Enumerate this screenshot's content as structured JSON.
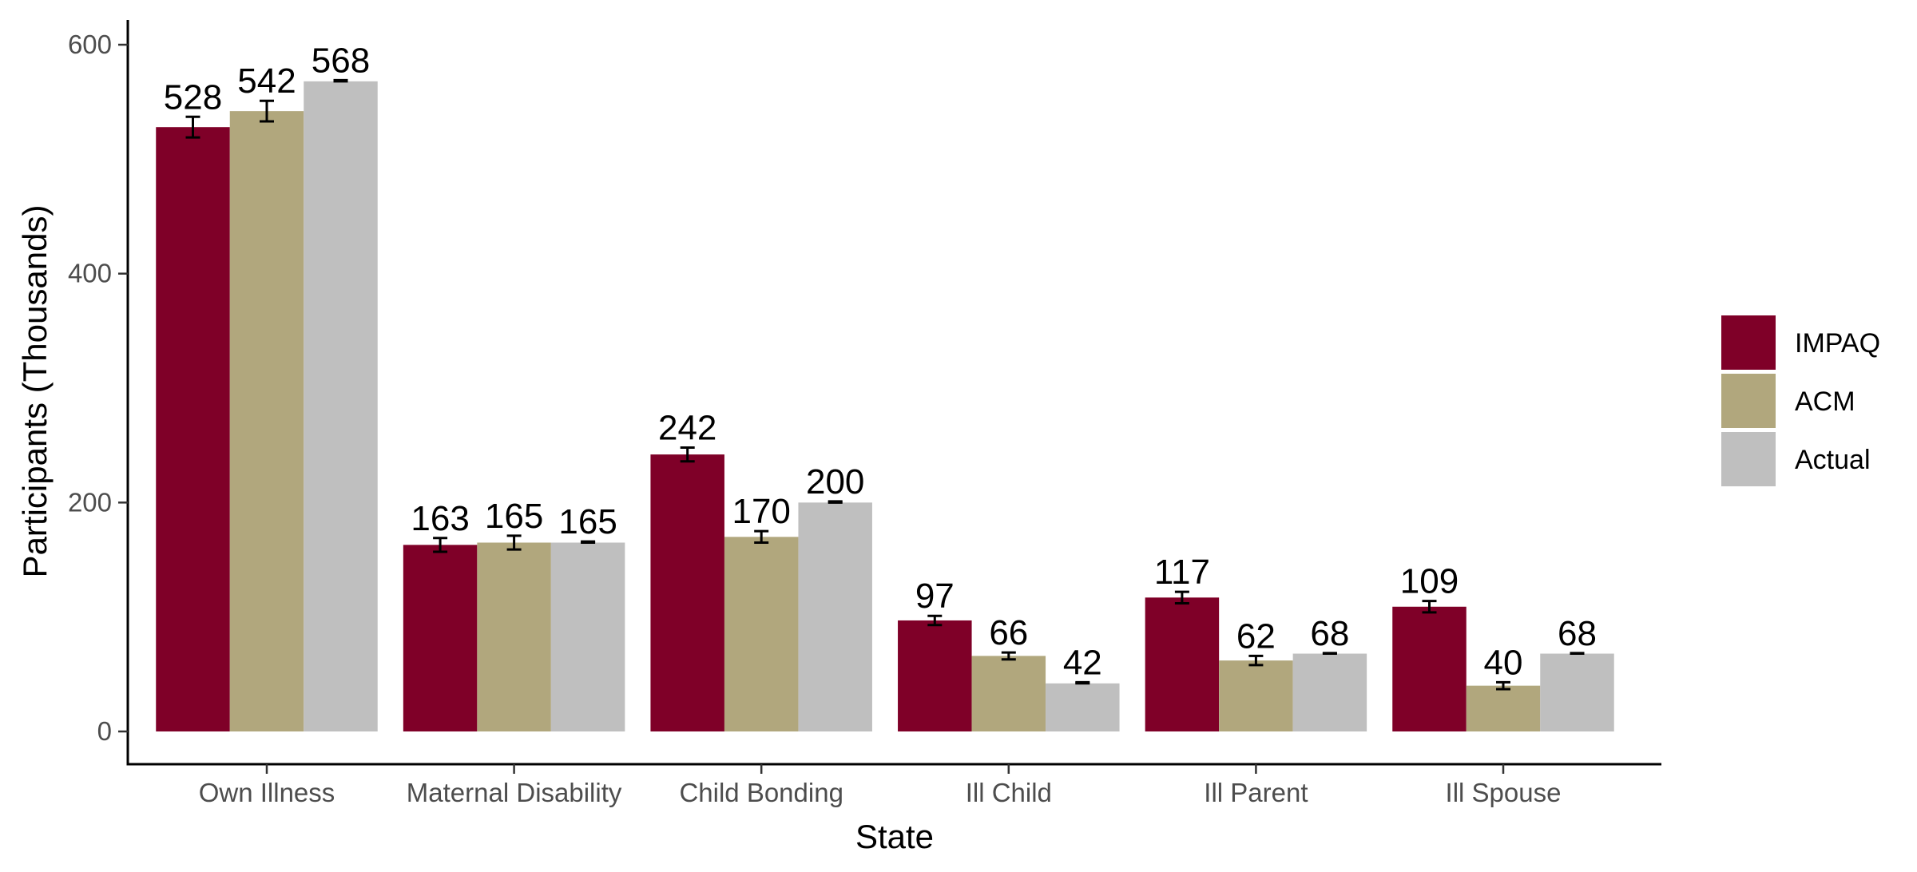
{
  "chart_data": {
    "type": "bar",
    "xlabel": "State",
    "ylabel": "Participants (Thousands)",
    "ylim": [
      0,
      620
    ],
    "y_ticks": [
      0,
      200,
      400,
      600
    ],
    "categories": [
      "Own Illness",
      "Maternal Disability",
      "Child Bonding",
      "Ill Child",
      "Ill Parent",
      "Ill Spouse"
    ],
    "series": [
      {
        "name": "IMPAQ",
        "color": "#7f0028",
        "values": [
          528,
          163,
          242,
          97,
          117,
          109
        ],
        "labels": [
          "528",
          "163",
          "242",
          "97",
          "117",
          "109"
        ],
        "error_low": [
          519,
          157,
          236,
          93,
          112,
          104
        ],
        "error_high": [
          537,
          169,
          248,
          101,
          122,
          114
        ]
      },
      {
        "name": "ACM",
        "color": "#b1a77d",
        "values": [
          542,
          165,
          170,
          66,
          62,
          40
        ],
        "labels": [
          "542",
          "165",
          "170",
          "66",
          "62",
          "40"
        ],
        "error_low": [
          533,
          159,
          165,
          63,
          58,
          37
        ],
        "error_high": [
          551,
          171,
          175,
          69,
          66,
          43
        ]
      },
      {
        "name": "Actual",
        "color": "#bfbfbf",
        "values": [
          568,
          165,
          200,
          42,
          68,
          68
        ],
        "labels": [
          "568",
          "165",
          "200",
          "42",
          "68",
          "68"
        ],
        "error_low": [
          568,
          165,
          200,
          42,
          68,
          68
        ],
        "error_high": [
          569,
          166,
          201,
          43,
          68.5,
          68.5
        ]
      }
    ],
    "legend": {
      "position": "right",
      "entries": [
        "IMPAQ",
        "ACM",
        "Actual"
      ]
    },
    "grid": false,
    "error_bars": true
  }
}
